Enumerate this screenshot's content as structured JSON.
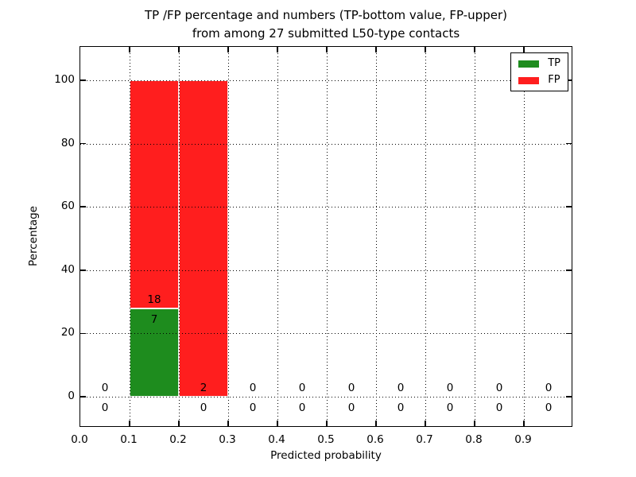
{
  "figure": {
    "title_line1": "TP /FP percentage and numbers (TP-bottom value, FP-upper)",
    "title_line2": "from among 27 submitted L50-type contacts",
    "xlabel": "Predicted probability",
    "ylabel": "Percentage"
  },
  "legend": {
    "position": "upper right",
    "items": [
      {
        "label": "TP",
        "color": "#1e8c1e"
      },
      {
        "label": "FP",
        "color": "#ff1e1e"
      }
    ]
  },
  "chart_data": {
    "type": "bar",
    "stacked": true,
    "title": "TP /FP percentage and numbers (TP-bottom value, FP-upper) from among 27 submitted L50-type contacts",
    "xlabel": "Predicted probability",
    "ylabel": "Percentage",
    "xlim": [
      0.0,
      1.0
    ],
    "ylim": [
      -10,
      110.5
    ],
    "xticks": [
      "0.0",
      "0.1",
      "0.2",
      "0.3",
      "0.4",
      "0.5",
      "0.6",
      "0.7",
      "0.8",
      "0.9"
    ],
    "yticks": [
      0,
      20,
      40,
      60,
      80,
      100
    ],
    "grid": "dotted black, major ticks, drawn over bars",
    "legend_position": "upper right",
    "total_contacts": 27,
    "series": [
      {
        "name": "TP",
        "color": "#1e8c1e",
        "position": "bottom"
      },
      {
        "name": "FP",
        "color": "#ff1e1e",
        "position": "top"
      }
    ],
    "bins": [
      {
        "range": [
          0.0,
          0.1
        ],
        "tp_count": 0,
        "fp_count": 0,
        "tp_pct": 0,
        "fp_pct": 0
      },
      {
        "range": [
          0.1,
          0.2
        ],
        "tp_count": 7,
        "fp_count": 18,
        "tp_pct": 28,
        "fp_pct": 72
      },
      {
        "range": [
          0.2,
          0.3
        ],
        "tp_count": 0,
        "fp_count": 2,
        "tp_pct": 0,
        "fp_pct": 100
      },
      {
        "range": [
          0.3,
          0.4
        ],
        "tp_count": 0,
        "fp_count": 0,
        "tp_pct": 0,
        "fp_pct": 0
      },
      {
        "range": [
          0.4,
          0.5
        ],
        "tp_count": 0,
        "fp_count": 0,
        "tp_pct": 0,
        "fp_pct": 0
      },
      {
        "range": [
          0.5,
          0.6
        ],
        "tp_count": 0,
        "fp_count": 0,
        "tp_pct": 0,
        "fp_pct": 0
      },
      {
        "range": [
          0.6,
          0.7
        ],
        "tp_count": 0,
        "fp_count": 0,
        "tp_pct": 0,
        "fp_pct": 0
      },
      {
        "range": [
          0.7,
          0.8
        ],
        "tp_count": 0,
        "fp_count": 0,
        "tp_pct": 0,
        "fp_pct": 0
      },
      {
        "range": [
          0.8,
          0.9
        ],
        "tp_count": 0,
        "fp_count": 0,
        "tp_pct": 0,
        "fp_pct": 0
      },
      {
        "range": [
          0.9,
          1.0
        ],
        "tp_count": 0,
        "fp_count": 0,
        "tp_pct": 0,
        "fp_pct": 0
      }
    ]
  }
}
